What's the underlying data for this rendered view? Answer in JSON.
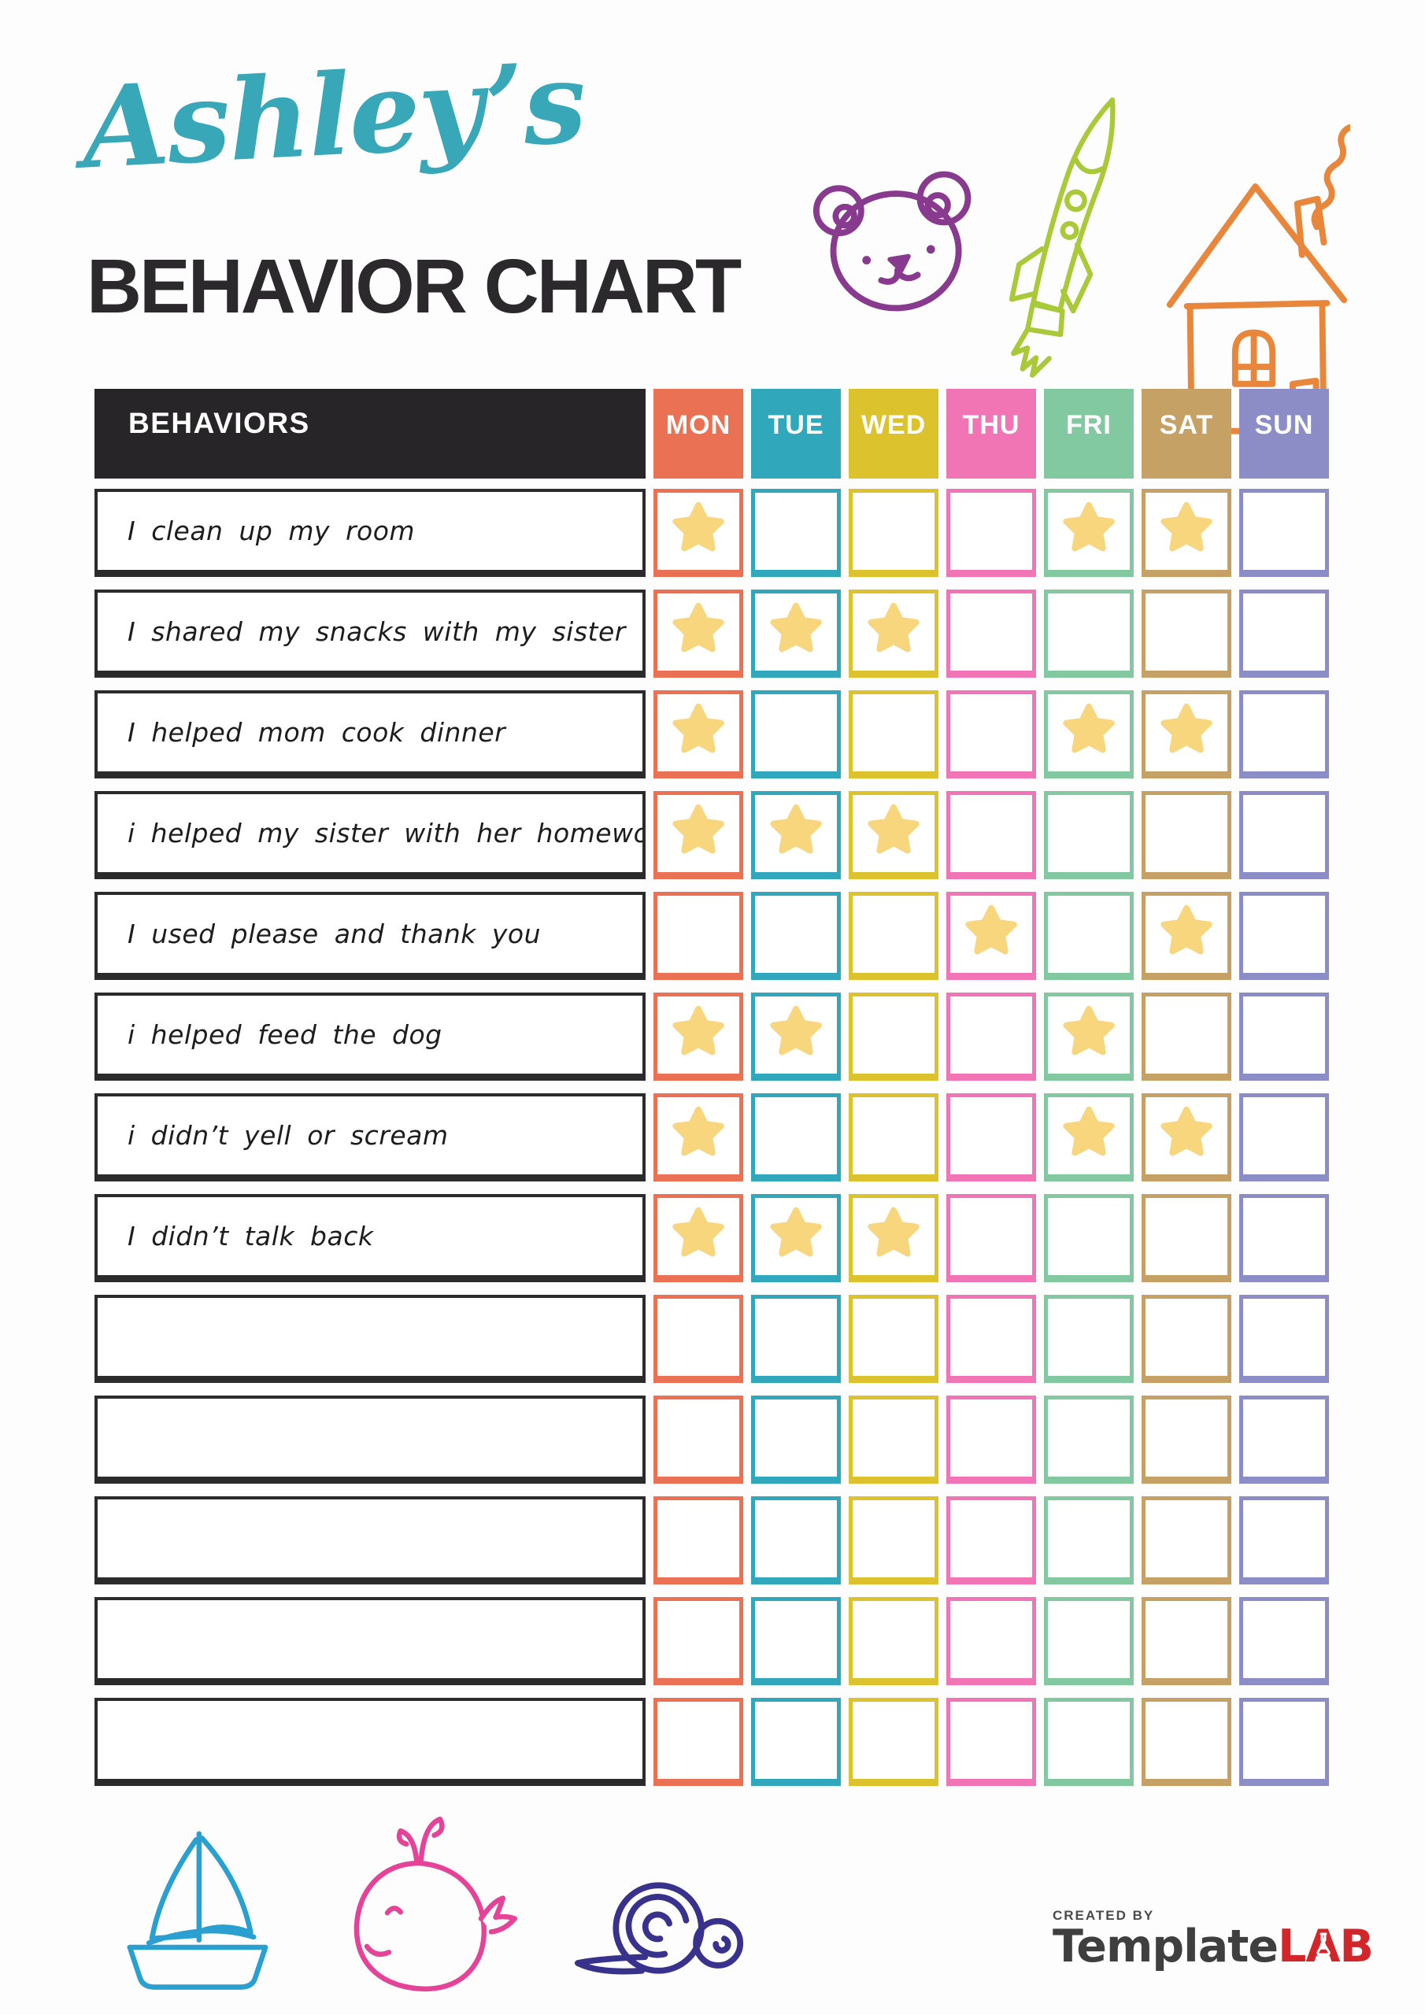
{
  "header": {
    "child_name": "Ashley’s",
    "child_name_color": "#38a8b9",
    "title": "BEHAVIOR CHART",
    "title_color": "#2b292c"
  },
  "table": {
    "behaviors_label": "BEHAVIORS",
    "behaviors_header_bg": "#272527",
    "star_color": "#f8d67d",
    "days": [
      {
        "label": "MON",
        "color": "#ea7154"
      },
      {
        "label": "TUE",
        "color": "#30a7bb"
      },
      {
        "label": "WED",
        "color": "#dcc32e"
      },
      {
        "label": "THU",
        "color": "#f175b4"
      },
      {
        "label": "FRI",
        "color": "#82c8a0"
      },
      {
        "label": "SAT",
        "color": "#c6a166"
      },
      {
        "label": "SUN",
        "color": "#8c8cc7"
      }
    ],
    "rows": [
      {
        "behavior": "I clean up my room",
        "stars": [
          "MON",
          "FRI",
          "SAT"
        ]
      },
      {
        "behavior": "I shared my snacks with my sister",
        "stars": [
          "MON",
          "TUE",
          "WED"
        ]
      },
      {
        "behavior": "I helped mom cook dinner",
        "stars": [
          "MON",
          "FRI",
          "SAT"
        ]
      },
      {
        "behavior": "i helped my sister with her homework",
        "stars": [
          "MON",
          "TUE",
          "WED"
        ]
      },
      {
        "behavior": "I used please and thank you",
        "stars": [
          "THU",
          "SAT"
        ]
      },
      {
        "behavior": "i helped feed the dog",
        "stars": [
          "MON",
          "TUE",
          "FRI"
        ]
      },
      {
        "behavior": "i didn’t yell or scream",
        "stars": [
          "MON",
          "FRI",
          "SAT"
        ]
      },
      {
        "behavior": "I didn’t talk back",
        "stars": [
          "MON",
          "TUE",
          "WED"
        ]
      },
      {
        "behavior": "",
        "stars": []
      },
      {
        "behavior": "",
        "stars": []
      },
      {
        "behavior": "",
        "stars": []
      },
      {
        "behavior": "",
        "stars": []
      },
      {
        "behavior": "",
        "stars": []
      }
    ]
  },
  "decorations": {
    "top": [
      {
        "name": "bear",
        "color": "#883b8e"
      },
      {
        "name": "rocket",
        "color": "#a9c939"
      },
      {
        "name": "house",
        "color": "#e8873b"
      }
    ],
    "bottom": [
      {
        "name": "boat",
        "color": "#2aa0d1"
      },
      {
        "name": "whale",
        "color": "#e54397"
      },
      {
        "name": "snail",
        "color": "#38328c"
      }
    ]
  },
  "footer": {
    "created_by": "CREATED BY",
    "brand_part1": "Template",
    "brand_part1_color": "#3f3f3f",
    "brand_part2": "LAB",
    "brand_part2_color": "#d2262b"
  }
}
